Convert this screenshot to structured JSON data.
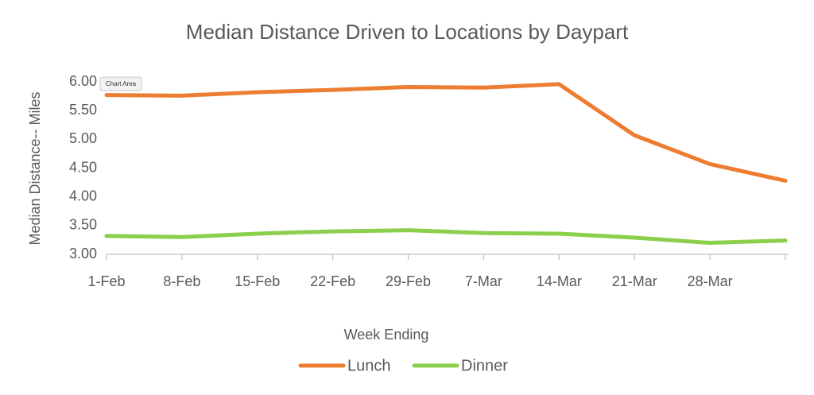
{
  "chart_data": {
    "type": "line",
    "title": "Median Distance Driven to Locations by Daypart",
    "x_label": "Week Ending",
    "y_label": "Median Distance-- Miles",
    "tooltip": "Chart Area",
    "categories": [
      "1-Feb",
      "8-Feb",
      "15-Feb",
      "22-Feb",
      "29-Feb",
      "7-Mar",
      "14-Mar",
      "21-Mar",
      "28-Mar",
      null
    ],
    "series": [
      {
        "name": "Lunch",
        "color": "#ED7D31",
        "values": [
          5.77,
          5.76,
          5.82,
          5.86,
          5.91,
          5.9,
          5.96,
          5.07,
          4.57,
          4.28
        ]
      },
      {
        "name": "Dinner",
        "color": "#8CCF4D",
        "values": [
          3.32,
          3.3,
          3.36,
          3.4,
          3.42,
          3.37,
          3.36,
          3.29,
          3.2,
          3.24
        ]
      }
    ],
    "ylim": [
      3,
      6
    ],
    "yticks": [
      {
        "value": 3,
        "label": "3.00"
      },
      {
        "value": 3.5,
        "label": "3.50"
      },
      {
        "value": 4,
        "label": "4.00"
      },
      {
        "value": 4.5,
        "label": "4.50"
      },
      {
        "value": 5,
        "label": "5.00"
      },
      {
        "value": 5.5,
        "label": "5.50"
      },
      {
        "value": 6,
        "label": "6.00"
      }
    ],
    "legend": "bottom"
  }
}
